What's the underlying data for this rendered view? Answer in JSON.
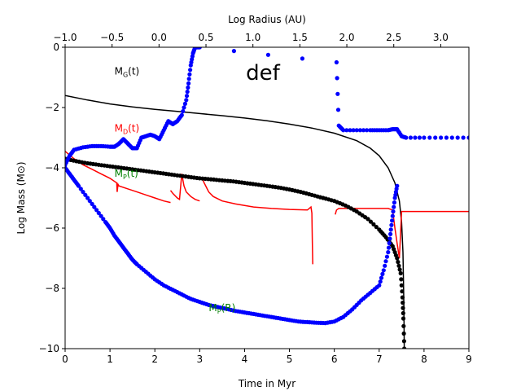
{
  "chart_data": {
    "type": "scatter",
    "title": "",
    "panel_label": "def",
    "xlabel": "Time in Myr",
    "ylabel": "Log Mass (M⊙)",
    "x2label": "Log Radius (AU)",
    "xlim": [
      0,
      9
    ],
    "ylim": [
      -10,
      0
    ],
    "x2lim": [
      -1.0,
      3.3
    ],
    "x_ticks": [
      "0",
      "1",
      "2",
      "3",
      "4",
      "5",
      "6",
      "7",
      "8",
      "9"
    ],
    "y_ticks": [
      "0",
      "−2",
      "−4",
      "−6",
      "−8",
      "−10"
    ],
    "x2_ticks": [
      "−1.0",
      "−0.5",
      "0.0",
      "0.5",
      "1.0",
      "1.5",
      "2.0",
      "2.5",
      "3.0"
    ],
    "x2_tick_values": [
      -1.0,
      -0.5,
      0.0,
      0.5,
      1.0,
      1.5,
      2.0,
      2.5,
      3.0
    ],
    "grid": false,
    "legend": "none",
    "colors": {
      "gas": "#000000",
      "dust": "#ff0000",
      "planet_t": "#000000",
      "planet_r": "#0000ff"
    },
    "annotations": [
      {
        "text": "Mₑ(t)",
        "label_main": "M",
        "label_sub": "G",
        "label_tail": "(t)",
        "color": "#000000",
        "x": 1.1,
        "y": -0.9
      },
      {
        "text": "Mₑ(t)",
        "label_main": "M",
        "label_sub": "D",
        "label_tail": "(t)",
        "color": "#ff0000",
        "x": 1.1,
        "y": -2.8
      },
      {
        "text": "Mₚ(t)",
        "label_main": "M",
        "label_sub": "P",
        "label_tail": "(t)",
        "color": "#008000",
        "x": 1.1,
        "y": -4.3
      },
      {
        "text": "Mₚ(R)",
        "label_main": "M",
        "label_sub": "P",
        "label_tail": "(R)",
        "color": "#008000",
        "x": 3.2,
        "y": -8.75
      }
    ],
    "series": [
      {
        "name": "M_G(t)",
        "kind": "line",
        "color": "#000000",
        "x": [
          0,
          0.5,
          1,
          1.5,
          2,
          2.5,
          3,
          3.5,
          4,
          4.5,
          5,
          5.5,
          6,
          6.5,
          6.8,
          7,
          7.2,
          7.35,
          7.45,
          7.5,
          7.53,
          7.55,
          7.56
        ],
        "y": [
          -1.6,
          -1.75,
          -1.88,
          -1.98,
          -2.06,
          -2.13,
          -2.2,
          -2.27,
          -2.35,
          -2.44,
          -2.55,
          -2.68,
          -2.85,
          -3.1,
          -3.35,
          -3.6,
          -4.0,
          -4.5,
          -5.1,
          -5.8,
          -6.8,
          -8.5,
          -10
        ]
      },
      {
        "name": "M_D(t)",
        "kind": "line",
        "color": "#ff0000",
        "segments": [
          {
            "x": [
              0,
              0.2,
              0.4,
              0.6,
              0.8,
              1.0,
              1.15,
              1.16,
              1.18,
              1.2,
              1.4,
              1.6,
              1.8,
              2.0,
              2.2,
              2.35
            ],
            "y": [
              -3.45,
              -3.7,
              -3.9,
              -4.05,
              -4.2,
              -4.35,
              -4.5,
              -4.8,
              -4.55,
              -4.6,
              -4.7,
              -4.8,
              -4.9,
              -5.0,
              -5.1,
              -5.15
            ]
          },
          {
            "x": [
              2.35,
              2.4,
              2.5,
              2.55,
              2.6,
              2.65,
              2.7,
              2.8,
              2.9,
              3.0
            ],
            "y": [
              -4.75,
              -4.85,
              -5.0,
              -5.05,
              -4.2,
              -4.6,
              -4.8,
              -4.95,
              -5.05,
              -5.1
            ]
          },
          {
            "x": [
              3.05,
              3.1,
              3.2,
              3.3,
              3.5,
              3.8,
              4.2,
              4.6,
              5.0,
              5.4,
              5.48,
              5.5,
              5.51,
              5.52
            ],
            "y": [
              -4.35,
              -4.5,
              -4.8,
              -4.95,
              -5.1,
              -5.2,
              -5.3,
              -5.35,
              -5.38,
              -5.4,
              -5.3,
              -5.5,
              -6.5,
              -7.2
            ]
          },
          {
            "x": [
              6.02,
              6.05,
              6.1,
              6.4,
              6.8,
              7.2,
              7.3,
              7.35,
              7.4,
              7.45,
              7.5,
              7.55,
              8.0,
              8.5,
              9.0
            ],
            "y": [
              -5.55,
              -5.4,
              -5.35,
              -5.35,
              -5.35,
              -5.35,
              -5.4,
              -6.0,
              -6.5,
              -7.0,
              -5.45,
              -5.45,
              -5.45,
              -5.45,
              -5.45
            ]
          }
        ]
      },
      {
        "name": "M_P(t)",
        "kind": "dots",
        "color": "#000000",
        "x": [
          0,
          0.25,
          0.5,
          0.75,
          1.0,
          1.25,
          1.5,
          1.75,
          2.0,
          2.25,
          2.5,
          2.75,
          3.0,
          3.25,
          3.5,
          3.75,
          4.0,
          4.25,
          4.5,
          4.75,
          5.0,
          5.25,
          5.5,
          5.75,
          6.0,
          6.25,
          6.5,
          6.75,
          7.0,
          7.15,
          7.3,
          7.4,
          7.48,
          7.52,
          7.54,
          7.56
        ],
        "y": [
          -3.7,
          -3.78,
          -3.85,
          -3.9,
          -3.95,
          -4.0,
          -4.05,
          -4.1,
          -4.15,
          -4.2,
          -4.25,
          -4.3,
          -4.35,
          -4.38,
          -4.42,
          -4.45,
          -4.5,
          -4.55,
          -4.6,
          -4.65,
          -4.72,
          -4.8,
          -4.9,
          -5.0,
          -5.1,
          -5.25,
          -5.45,
          -5.7,
          -6.05,
          -6.3,
          -6.6,
          -7.0,
          -7.5,
          -8.3,
          -9.0,
          -10
        ]
      },
      {
        "name": "M_P(R)",
        "kind": "dots",
        "color": "#0000ff",
        "x": [
          0,
          0.1,
          0.2,
          0.3,
          0.5,
          0.7,
          0.9,
          1.0,
          1.1,
          1.2,
          1.3,
          1.4,
          1.5,
          1.6,
          1.8,
          2.0,
          2.2,
          2.4,
          2.6,
          2.8,
          3.0,
          3.2,
          3.4,
          3.6,
          3.8,
          4.0,
          4.2,
          4.4,
          4.6,
          4.8,
          5.0,
          5.2,
          5.4,
          5.6,
          5.8,
          6.0,
          6.2,
          6.4,
          6.6,
          6.8,
          7.0,
          7.1,
          7.2,
          7.25,
          7.3,
          7.35,
          7.4
        ],
        "y": [
          -4.0,
          -4.2,
          -4.4,
          -4.6,
          -5.0,
          -5.4,
          -5.8,
          -6.0,
          -6.25,
          -6.45,
          -6.65,
          -6.85,
          -7.05,
          -7.2,
          -7.45,
          -7.7,
          -7.9,
          -8.05,
          -8.2,
          -8.35,
          -8.45,
          -8.55,
          -8.62,
          -8.68,
          -8.75,
          -8.8,
          -8.85,
          -8.9,
          -8.95,
          -9.0,
          -9.05,
          -9.1,
          -9.12,
          -9.14,
          -9.15,
          -9.1,
          -8.95,
          -8.7,
          -8.4,
          -8.15,
          -7.9,
          -7.4,
          -6.8,
          -6.2,
          -5.6,
          -5.0,
          -4.6
        ]
      },
      {
        "name": "M_P(R) upper branch",
        "kind": "dots",
        "color": "#0000ff",
        "x": [
          0.0,
          0.1,
          0.2,
          0.4,
          0.6,
          0.8,
          1.0,
          1.1,
          1.2,
          1.3,
          1.4,
          1.5,
          1.6,
          1.7,
          1.8,
          1.9,
          2.0,
          2.1,
          2.2,
          2.3,
          2.4,
          2.5,
          2.6,
          2.7,
          2.75,
          2.8,
          2.85,
          2.9,
          2.95,
          3.0,
          6.05,
          6.1,
          6.2,
          6.5,
          6.8,
          7.0,
          7.2,
          7.3,
          7.4,
          7.5,
          7.6,
          8.0,
          8.5,
          9.0
        ],
        "y": [
          -3.9,
          -3.6,
          -3.4,
          -3.32,
          -3.28,
          -3.28,
          -3.3,
          -3.3,
          -3.2,
          -3.05,
          -3.2,
          -3.35,
          -3.35,
          -3.0,
          -2.95,
          -2.9,
          -2.95,
          -3.05,
          -2.75,
          -2.45,
          -2.55,
          -2.45,
          -2.25,
          -1.75,
          -1.2,
          -0.6,
          -0.2,
          0.0,
          0.0,
          0.0,
          -0.5,
          -2.6,
          -2.75,
          -2.75,
          -2.75,
          -2.75,
          -2.75,
          -2.72,
          -2.72,
          -2.95,
          -3.0,
          -3.0,
          -3.0,
          -3.0
        ]
      }
    ]
  }
}
